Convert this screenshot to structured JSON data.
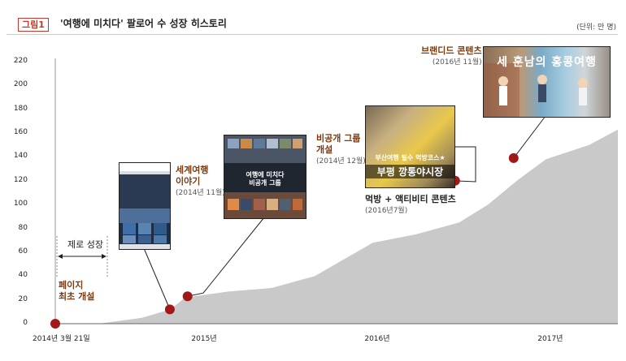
{
  "figure": {
    "label": "그림1",
    "title": "'여행에 미치다' 팔로어 수 성장 히스토리",
    "unit": "(단위: 만 명)"
  },
  "colors": {
    "area": "#c9c9c9",
    "marker": "#a01818",
    "accent": "#7a3b12"
  },
  "chart_data": {
    "type": "area",
    "title": "'여행에 미치다' 팔로어 수 성장 히스토리",
    "ylabel": "(단위: 만 명)",
    "ylim": [
      0,
      220
    ],
    "yticks": [
      0,
      20,
      40,
      60,
      80,
      100,
      120,
      140,
      160,
      180,
      200,
      220
    ],
    "xlim": [
      "2014-03",
      "2017-06"
    ],
    "xtick_labels": [
      {
        "x": "2014-03",
        "label": "2014년 3월 21일"
      },
      {
        "x": "2015-01",
        "label": "2015년"
      },
      {
        "x": "2016-01",
        "label": "2016년"
      },
      {
        "x": "2017-01",
        "label": "2017년"
      }
    ],
    "grid": false,
    "series": [
      {
        "x": [
          "2014-03",
          "2014-06",
          "2014-09",
          "2014-11",
          "2014-12",
          "2015-03",
          "2015-06",
          "2015-09",
          "2016-01",
          "2016-04",
          "2016-07",
          "2016-09",
          "2016-11",
          "2017-01",
          "2017-04",
          "2017-06"
        ],
        "values": [
          0,
          0,
          5,
          12,
          22,
          27,
          30,
          40,
          68,
          75,
          85,
          100,
          120,
          138,
          150,
          163
        ]
      }
    ],
    "events": [
      {
        "x": "2014-03",
        "y": 0,
        "title": "페이지\n최초 개설",
        "date": ""
      },
      {
        "x": "2014-11",
        "y": 12,
        "title": "세계여행\n이야기",
        "date": "(2014년 11월)"
      },
      {
        "x": "2014-12",
        "y": 23,
        "title": "비공개 그룹\n개설",
        "date": "(2014년 12월)"
      },
      {
        "x": "2016-07",
        "y": 120,
        "title": "먹방 + 액티비티 콘텐츠",
        "date": "(2016년7월)"
      },
      {
        "x": "2016-11",
        "y": 139,
        "title": "브랜디드 콘텐츠",
        "date": "(2016년 11월)"
      }
    ],
    "period": {
      "from": "2014-03",
      "to": "2014-11",
      "label": "제로 성장"
    }
  },
  "photos": {
    "group_caption": "여행에 미치다\n비공개 그룹",
    "food_caption_top": "부산여행 필수 먹방코스★",
    "food_caption_bottom": "부평 깡통야시장",
    "branded_caption": "세 훈남의 홍콩여행"
  }
}
